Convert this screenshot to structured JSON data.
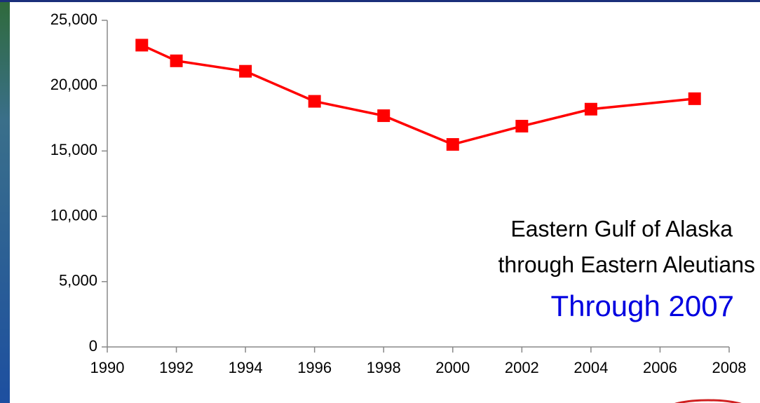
{
  "chart_data": {
    "type": "line",
    "x": [
      1991,
      1992,
      1994,
      1996,
      1998,
      2000,
      2002,
      2004,
      2007
    ],
    "series": [
      {
        "name": "Eastern Gulf of Alaska through Eastern Aleutians",
        "color": "#ff0000",
        "values": [
          23100,
          21900,
          21100,
          18800,
          17700,
          15500,
          16900,
          18200,
          19000
        ]
      }
    ],
    "xlim": [
      1990,
      2008
    ],
    "xticks": [
      1990,
      1992,
      1994,
      1996,
      1998,
      2000,
      2002,
      2004,
      2006,
      2008
    ],
    "ylim": [
      0,
      25000
    ],
    "yticks": [
      0,
      {
        "value": 5000,
        "label": "5,000"
      },
      {
        "value": 10000,
        "label": "10,000"
      },
      {
        "value": 15000,
        "label": "15,000"
      },
      {
        "value": 20000,
        "label": "20,000"
      },
      {
        "value": 25000,
        "label": "25,000"
      }
    ],
    "annotations": [
      "Eastern Gulf of Alaska",
      "through Eastern Aleutians",
      "Through 2007"
    ]
  }
}
